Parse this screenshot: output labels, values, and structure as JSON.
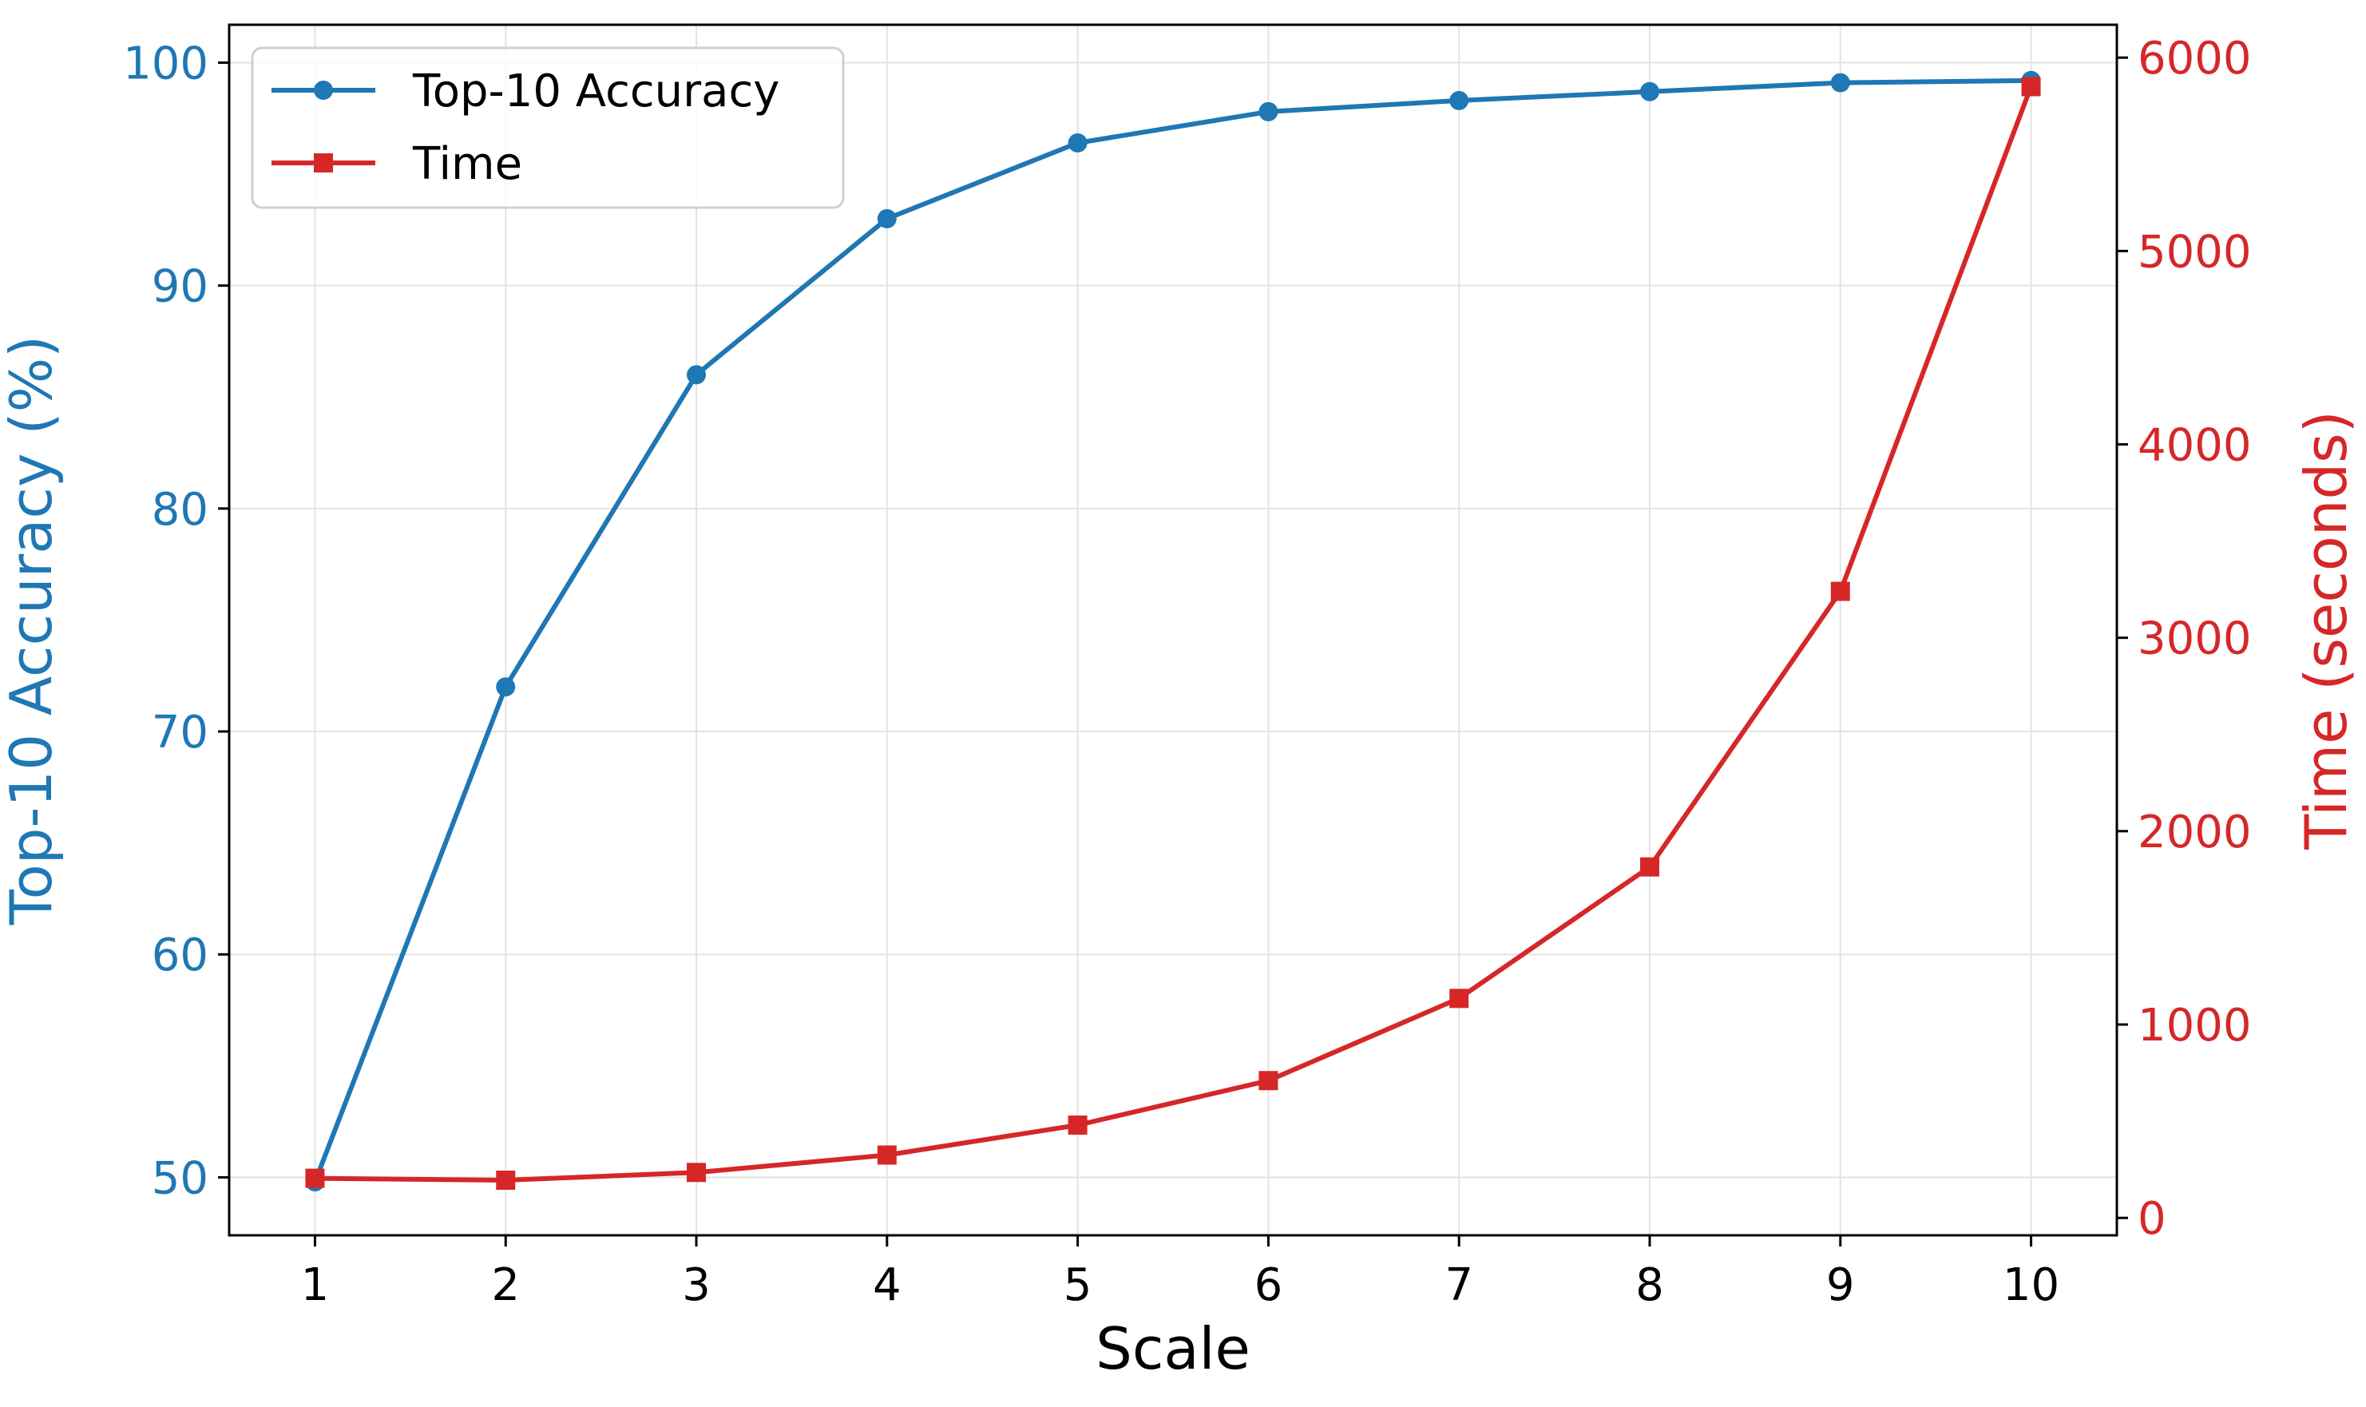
{
  "chart_data": {
    "type": "line",
    "xlabel": "Scale",
    "x": [
      1,
      2,
      3,
      4,
      5,
      6,
      7,
      8,
      9,
      10
    ],
    "xticks": [
      "1",
      "2",
      "3",
      "4",
      "5",
      "6",
      "7",
      "8",
      "9",
      "10"
    ],
    "xlim": [
      0.55,
      10.45
    ],
    "grid": true,
    "legend_position": "top-left",
    "left_axis": {
      "label": "Top-10 Accuracy (%)",
      "color": "#1f77b4",
      "ylim": [
        47.4,
        101.7
      ],
      "ticks": [
        50,
        60,
        70,
        80,
        90,
        100
      ]
    },
    "right_axis": {
      "label": "Time (seconds)",
      "color": "#d62728",
      "ylim": [
        -90,
        6170
      ],
      "ticks": [
        0,
        1000,
        2000,
        3000,
        4000,
        5000,
        6000
      ]
    },
    "series": [
      {
        "name": "Top-10 Accuracy",
        "axis": "left",
        "color": "#1f77b4",
        "marker": "circle",
        "values": [
          49.8,
          72.0,
          86.0,
          93.0,
          96.4,
          97.8,
          98.3,
          98.7,
          99.1,
          99.2
        ]
      },
      {
        "name": "Time",
        "axis": "right",
        "color": "#d62728",
        "marker": "square",
        "values": [
          205,
          195,
          235,
          325,
          480,
          710,
          1135,
          1815,
          3240,
          5850
        ]
      }
    ]
  }
}
